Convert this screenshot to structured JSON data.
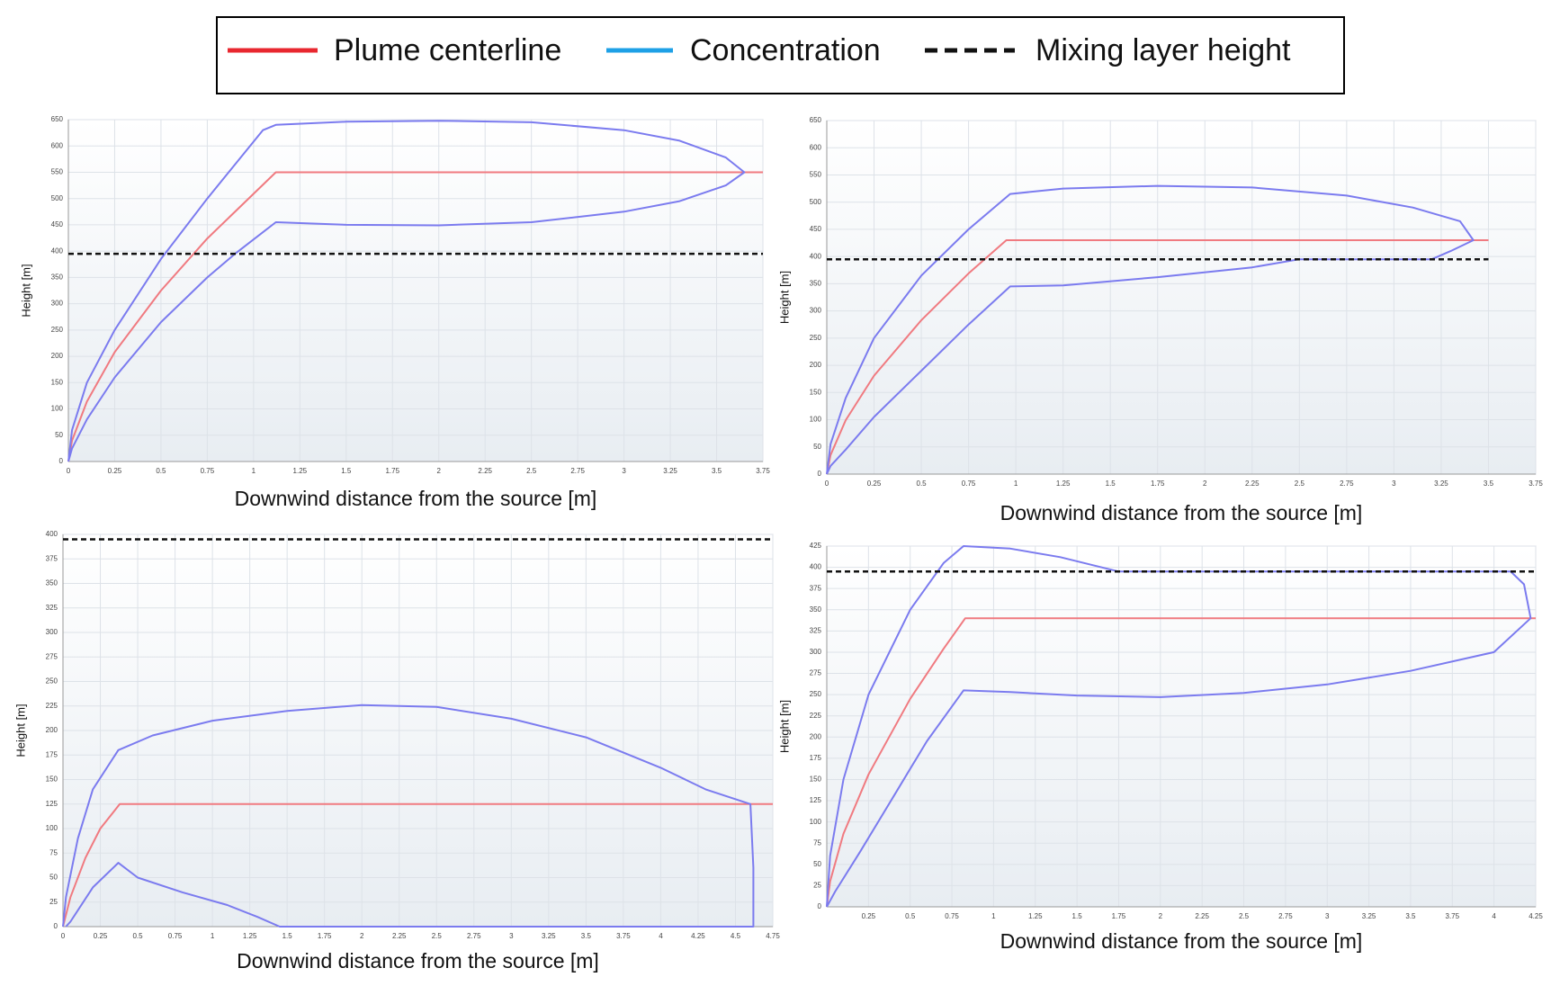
{
  "legend": [
    {
      "name": "Plume centerline",
      "color": "#e8272f",
      "dash": false
    },
    {
      "name": "Concentration",
      "color": "#1ea0e6",
      "dash": false
    },
    {
      "name": "Mixing layer height",
      "color": "#111111",
      "dash": true
    }
  ],
  "chart_data": [
    {
      "type": "line",
      "x_label": "Downwind distance from the source [m]",
      "y_label": "Height [m]",
      "xlim": [
        0,
        3.75
      ],
      "ylim": [
        0,
        650
      ],
      "grid": true,
      "xticks": [
        0,
        0.25,
        0.5,
        0.75,
        1,
        1.25,
        1.5,
        1.75,
        2,
        2.25,
        2.5,
        2.75,
        3,
        3.25,
        3.5,
        3.75
      ],
      "yticks": [
        0,
        50,
        100,
        150,
        200,
        250,
        300,
        350,
        400,
        450,
        500,
        550,
        600,
        650
      ],
      "series": [
        {
          "color": "#f07a80",
          "dash": false,
          "x": [
            0,
            0.02,
            0.1,
            0.25,
            0.5,
            0.75,
            1.12,
            3.75
          ],
          "values": [
            0,
            40,
            114,
            208,
            325,
            424,
            550,
            550
          ]
        },
        {
          "color": "#7b7bef",
          "dash": false,
          "x": [
            0,
            0.02,
            0.1,
            0.25,
            0.5,
            0.75,
            1.05,
            1.12,
            1.5,
            2,
            2.5,
            3,
            3.3,
            3.55,
            3.65,
            3.55,
            3.3,
            3,
            2.5,
            2,
            1.5,
            1.12,
            0.9,
            0.75,
            0.5,
            0.25,
            0.1,
            0.02,
            0
          ],
          "values": [
            0,
            60,
            150,
            250,
            385,
            500,
            630,
            640,
            646,
            648,
            645,
            630,
            610,
            578,
            550,
            525,
            495,
            475,
            455,
            449,
            450,
            455,
            395,
            350,
            265,
            160,
            80,
            25,
            0
          ]
        },
        {
          "color": "#111111",
          "dash": true,
          "x": [
            0,
            3.75
          ],
          "values": [
            395,
            395
          ]
        }
      ]
    },
    {
      "type": "line",
      "x_label": "Downwind distance from the source [m]",
      "y_label": "Height [m]",
      "xlim": [
        0,
        3.75
      ],
      "ylim": [
        0,
        650
      ],
      "grid": true,
      "xticks": [
        0,
        0.25,
        0.5,
        0.75,
        1,
        1.25,
        1.5,
        1.75,
        2,
        2.25,
        2.5,
        2.75,
        3,
        3.25,
        3.5,
        3.75
      ],
      "yticks": [
        0,
        50,
        100,
        150,
        200,
        250,
        300,
        350,
        400,
        450,
        500,
        550,
        600,
        650
      ],
      "series": [
        {
          "color": "#f07a80",
          "dash": false,
          "x": [
            0,
            0.02,
            0.1,
            0.25,
            0.5,
            0.75,
            0.95,
            3.5
          ],
          "values": [
            0,
            35,
            99,
            181,
            283,
            369,
            430,
            430
          ]
        },
        {
          "color": "#7b7bef",
          "dash": false,
          "x": [
            0,
            0.02,
            0.1,
            0.25,
            0.5,
            0.75,
            0.97,
            1.25,
            1.75,
            2.25,
            2.75,
            3.1,
            3.35,
            3.42,
            3.3,
            3.2,
            2.5,
            2.25,
            1.75,
            1.25,
            0.97,
            0.75,
            0.5,
            0.25,
            0.1,
            0.02,
            0
          ],
          "values": [
            0,
            55,
            140,
            250,
            365,
            450,
            515,
            525,
            530,
            527,
            512,
            490,
            465,
            430,
            410,
            395,
            395,
            380,
            362,
            347,
            345,
            275,
            190,
            105,
            45,
            15,
            0
          ]
        },
        {
          "color": "#111111",
          "dash": true,
          "x": [
            0,
            3.5
          ],
          "values": [
            395,
            395
          ]
        }
      ]
    },
    {
      "type": "line",
      "x_label": "Downwind distance from the source [m]",
      "y_label": "Height [m]",
      "xlim": [
        0,
        4.75
      ],
      "ylim": [
        0,
        400
      ],
      "grid": true,
      "xticks": [
        0,
        0.25,
        0.5,
        0.75,
        1,
        1.25,
        1.5,
        1.75,
        2,
        2.25,
        2.5,
        2.75,
        3,
        3.25,
        3.5,
        3.75,
        4,
        4.25,
        4.5,
        4.75
      ],
      "yticks": [
        0,
        25,
        50,
        75,
        100,
        125,
        150,
        175,
        200,
        225,
        250,
        275,
        300,
        325,
        350,
        375,
        400
      ],
      "series": [
        {
          "color": "#f07a80",
          "dash": false,
          "x": [
            0,
            0.05,
            0.15,
            0.25,
            0.38,
            4.75
          ],
          "values": [
            0,
            30,
            70,
            100,
            125,
            125
          ]
        },
        {
          "color": "#7b7bef",
          "dash": false,
          "x": [
            0,
            0.02,
            0.1,
            0.2,
            0.37,
            0.6,
            1,
            1.5,
            2,
            2.5,
            3,
            3.5,
            4,
            4.3,
            4.6,
            4.62,
            4.62,
            1.45,
            1.3,
            1.1,
            0.8,
            0.5,
            0.37,
            0.2,
            0.05,
            0.02
          ],
          "values": [
            0,
            30,
            90,
            140,
            180,
            195,
            210,
            220,
            226,
            224,
            212,
            193,
            162,
            140,
            125,
            60,
            0,
            0,
            10,
            22,
            35,
            50,
            65,
            40,
            5,
            0
          ]
        },
        {
          "color": "#111111",
          "dash": true,
          "x": [
            0,
            4.75
          ],
          "values": [
            395,
            395
          ]
        }
      ]
    },
    {
      "type": "line",
      "x_label": "Downwind distance from the source [m]",
      "y_label": "Height [m]",
      "xlim": [
        0,
        4.25
      ],
      "ylim": [
        0,
        425
      ],
      "grid": true,
      "xticks": [
        0.25,
        0.5,
        0.75,
        1,
        1.25,
        1.5,
        1.75,
        2,
        2.25,
        2.5,
        2.75,
        3,
        3.25,
        3.5,
        3.75,
        4,
        4.25
      ],
      "yticks": [
        0,
        25,
        50,
        75,
        100,
        125,
        150,
        175,
        200,
        225,
        250,
        275,
        300,
        325,
        350,
        375,
        400,
        425
      ],
      "series": [
        {
          "color": "#f07a80",
          "dash": false,
          "x": [
            0,
            0.02,
            0.1,
            0.25,
            0.5,
            0.7,
            0.83,
            4.25
          ],
          "values": [
            0,
            30,
            86,
            156,
            245,
            304,
            340,
            340
          ]
        },
        {
          "color": "#7b7bef",
          "dash": false,
          "x": [
            0,
            0.02,
            0.1,
            0.25,
            0.5,
            0.7,
            0.82,
            1.1,
            1.4,
            1.75,
            4.1,
            4.18,
            4.22,
            4,
            3.5,
            3,
            2.5,
            2,
            1.5,
            1.1,
            0.82,
            0.6,
            0.4,
            0.2,
            0.05,
            0
          ],
          "values": [
            0,
            60,
            150,
            250,
            350,
            405,
            425,
            422,
            412,
            395,
            395,
            380,
            340,
            300,
            278,
            262,
            252,
            247,
            249,
            253,
            255,
            195,
            130,
            65,
            18,
            0
          ]
        },
        {
          "color": "#111111",
          "dash": true,
          "x": [
            0,
            4.25
          ],
          "values": [
            395,
            395
          ]
        }
      ]
    }
  ]
}
